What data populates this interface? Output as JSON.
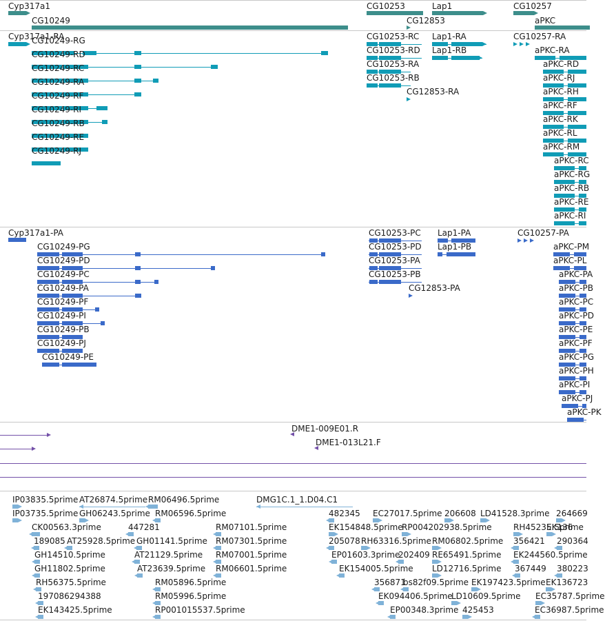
{
  "palette": {
    "gene": "#3d8e8b",
    "transcript": "#109cb6",
    "protein": "#3a6ac9",
    "oligo": "#7350a8",
    "est": "#7fb2d8",
    "separator": "#c7c7c7",
    "track_line": "#7350a8",
    "text": "#1a1a1a"
  },
  "gene_track": {
    "labels": [
      "Cyp317a1",
      "CG10249",
      "CG10253",
      "CG12853",
      "Lap1",
      "CG10257",
      "aPKC"
    ]
  },
  "transcript_track": {
    "labels": [
      "Cyp317a1-RA",
      "CG10249-RG",
      "CG10249-RD",
      "CG10249-RC",
      "CG10249-RA",
      "CG10249-RF",
      "CG10249-RI",
      "CG10249-RB",
      "CG10249-RE",
      "CG10249-RJ",
      "CG10253-RC",
      "CG10253-RD",
      "CG10253-RA",
      "CG10253-RB",
      "CG12853-RA",
      "Lap1-RA",
      "Lap1-RB",
      "CG10257-RA",
      "aPKC-RA",
      "aPKC-RD",
      "aPKC-RJ",
      "aPKC-RH",
      "aPKC-RF",
      "aPKC-RK",
      "aPKC-RL",
      "aPKC-RM",
      "aPKC-RC",
      "aPKC-RG",
      "aPKC-RB",
      "aPKC-RE",
      "aPKC-RI"
    ]
  },
  "protein_track": {
    "labels": [
      "Cyp317a1-PA",
      "CG10249-PG",
      "CG10249-PD",
      "CG10249-PC",
      "CG10249-PA",
      "CG10249-PF",
      "CG10249-PI",
      "CG10249-PB",
      "CG10249-PJ",
      "CG10249-PE",
      "CG10253-PC",
      "CG10253-PD",
      "CG10253-PA",
      "CG10253-PB",
      "CG12853-PA",
      "Lap1-PA",
      "Lap1-PB",
      "CG10257-PA",
      "aPKC-PM",
      "aPKC-PL",
      "aPKC-PA",
      "aPKC-PB",
      "aPKC-PC",
      "aPKC-PD",
      "aPKC-PE",
      "aPKC-PF",
      "aPKC-PG",
      "aPKC-PH",
      "aPKC-PI",
      "aPKC-PJ",
      "aPKC-PK"
    ]
  },
  "oligo_track": {
    "labels": [
      "DME1-009E01.R",
      "DME1-013L21.F"
    ]
  },
  "est_track": {
    "labels": [
      "IP03835.5prime",
      "AT26874.5prime",
      "RM06496.5prime",
      "DMG1C.1_1.D04.C1",
      "IP03735.5prime",
      "GH06243.5prime",
      "RM06596.5prime",
      "482345",
      "EC27017.5prime",
      "206608",
      "LD41528.3prime",
      "264669",
      "CK00563.3prime",
      "447281",
      "RM07101.5prime",
      "EK154848.5prime",
      "RP004202938.5prime",
      "RH45235.5prime",
      "EK136",
      "189085",
      "AT25928.5prime",
      "GH01141.5prime",
      "RM07301.5prime",
      "205078",
      "RH63316.5prime",
      "RM06802.5prime",
      "356421",
      "290364",
      "GH14510.5prime",
      "AT21129.5prime",
      "RM07001.5prime",
      "EP01603.3prime",
      "202409",
      "RE65491.5prime",
      "EK244560.5prime",
      "GH11802.5prime",
      "AT23639.5prime",
      "RM06601.5prime",
      "EK154005.5prime",
      "LD12716.5prime",
      "367449",
      "380223",
      "RH56375.5prime",
      "RM05896.5prime",
      "356871",
      "bs82f09.5prime",
      "EK197423.5prime",
      "EK136723",
      "197086294388",
      "RM05996.5prime",
      "EK094406.5prime",
      "LD10609.5prime",
      "EC35787.5prime",
      "EK143425.5prime",
      "RP001015537.5prime",
      "EP00348.3prime",
      "425453",
      "EC36987.5prime"
    ]
  }
}
